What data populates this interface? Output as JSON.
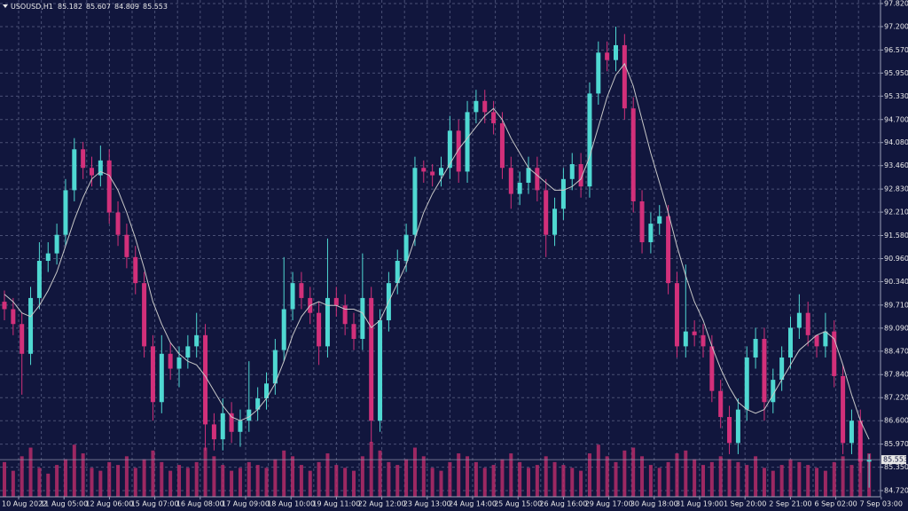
{
  "chart_data": {
    "type": "candlestick",
    "symbol": "USOUSD,H1",
    "last": {
      "open": 85.182,
      "high": 85.607,
      "low": 84.809,
      "close": 85.553
    },
    "x_labels": [
      "10 Aug 2022",
      "11 Aug 05:00",
      "12 Aug 06:00",
      "15 Aug 07:00",
      "16 Aug 08:00",
      "17 Aug 09:00",
      "18 Aug 10:00",
      "19 Aug 11:00",
      "22 Aug 12:00",
      "23 Aug 13:00",
      "24 Aug 14:00",
      "25 Aug 15:00",
      "26 Aug 16:00",
      "29 Aug 17:00",
      "30 Aug 18:00",
      "31 Aug 19:00",
      "1 Sep 20:00",
      "2 Sep 21:00",
      "6 Sep 02:00",
      "7 Sep 03:00"
    ],
    "open": [
      89.8,
      89.6,
      89.2,
      88.4,
      89.9,
      90.9,
      91.1,
      91.6,
      92.8,
      93.9,
      93.4,
      93.2,
      93.6,
      92.2,
      91.6,
      91.0,
      90.3,
      88.6,
      87.1,
      88.4,
      88.0,
      88.3,
      88.6,
      88.9,
      86.5,
      86.1,
      86.8,
      86.3,
      86.6,
      86.9,
      87.2,
      87.6,
      88.5,
      89.6,
      90.3,
      89.9,
      89.5,
      88.6,
      89.9,
      89.7,
      89.2,
      88.8,
      89.9,
      86.6,
      89.3,
      90.3,
      90.9,
      91.6,
      93.4,
      93.3,
      93.2,
      93.4,
      94.4,
      93.3,
      94.9,
      95.2,
      94.9,
      94.6,
      93.4,
      92.7,
      93.0,
      93.4,
      92.8,
      91.6,
      92.3,
      93.1,
      93.5,
      92.9,
      95.4,
      96.5,
      96.3,
      96.7,
      95.0,
      92.5,
      91.4,
      91.9,
      92.1,
      90.3,
      88.6,
      89.0,
      88.9,
      88.6,
      87.4,
      86.7,
      86.0,
      86.9,
      88.3,
      88.8,
      87.1,
      87.7,
      88.3,
      89.1,
      89.5,
      88.9,
      88.6,
      89.0,
      87.8,
      86.0,
      86.6,
      85.5
    ],
    "high": [
      90.1,
      89.9,
      89.5,
      90.2,
      91.4,
      91.4,
      91.9,
      93.1,
      94.2,
      94.1,
      93.7,
      94.0,
      93.9,
      92.5,
      91.9,
      91.3,
      90.6,
      88.9,
      88.9,
      88.7,
      88.6,
      88.9,
      89.5,
      89.2,
      86.8,
      87.2,
      87.1,
      86.9,
      88.2,
      87.5,
      87.9,
      88.8,
      91.0,
      90.6,
      90.6,
      90.2,
      89.8,
      91.5,
      90.2,
      90.0,
      89.5,
      91.1,
      90.2,
      89.6,
      90.6,
      91.2,
      91.9,
      93.7,
      93.6,
      93.5,
      93.7,
      94.8,
      94.7,
      95.2,
      95.5,
      95.5,
      95.2,
      94.9,
      93.7,
      93.3,
      93.7,
      93.7,
      93.1,
      92.6,
      93.4,
      93.8,
      93.8,
      95.7,
      96.8,
      96.8,
      97.2,
      97.0,
      95.3,
      92.8,
      92.2,
      92.4,
      92.4,
      90.6,
      90.8,
      89.3,
      89.2,
      88.9,
      87.7,
      87.0,
      87.2,
      88.6,
      89.1,
      89.1,
      88.0,
      88.6,
      89.4,
      90.0,
      89.8,
      88.9,
      89.5,
      89.3,
      88.1,
      86.9,
      86.9,
      85.7
    ],
    "low": [
      89.3,
      88.9,
      87.3,
      88.1,
      89.6,
      90.6,
      90.8,
      91.3,
      92.5,
      93.1,
      92.9,
      92.9,
      91.9,
      91.3,
      90.7,
      90.0,
      88.3,
      86.6,
      86.8,
      87.7,
      87.5,
      88.0,
      88.3,
      85.8,
      85.8,
      85.8,
      86.0,
      85.9,
      86.3,
      86.6,
      86.9,
      87.3,
      88.2,
      89.3,
      89.6,
      89.2,
      88.1,
      88.3,
      89.4,
      88.9,
      88.5,
      88.5,
      86.0,
      86.3,
      89.0,
      90.0,
      90.6,
      91.3,
      93.0,
      92.9,
      92.9,
      93.1,
      93.0,
      93.0,
      94.6,
      94.6,
      94.3,
      93.1,
      92.3,
      92.4,
      92.7,
      92.5,
      91.0,
      91.3,
      92.0,
      92.8,
      92.6,
      92.6,
      95.1,
      96.0,
      96.0,
      94.7,
      92.2,
      91.1,
      91.1,
      91.6,
      90.0,
      88.3,
      88.3,
      88.6,
      88.3,
      87.1,
      86.4,
      85.7,
      85.7,
      86.6,
      88.0,
      86.6,
      86.8,
      87.4,
      88.0,
      88.8,
      88.6,
      88.3,
      88.3,
      87.5,
      85.7,
      85.7,
      85.2,
      84.8
    ],
    "close": [
      89.6,
      89.2,
      88.4,
      89.9,
      90.9,
      91.1,
      91.6,
      92.8,
      93.9,
      93.4,
      93.2,
      93.6,
      92.2,
      91.6,
      91.0,
      90.3,
      88.6,
      87.1,
      88.4,
      88.0,
      88.3,
      88.6,
      88.9,
      86.5,
      86.1,
      86.8,
      86.3,
      86.6,
      86.9,
      87.2,
      87.6,
      88.5,
      89.6,
      90.3,
      89.9,
      89.5,
      88.6,
      89.9,
      89.7,
      89.2,
      88.8,
      89.9,
      86.6,
      89.3,
      90.3,
      90.9,
      91.6,
      93.4,
      93.3,
      93.2,
      93.4,
      94.4,
      93.3,
      94.9,
      95.2,
      94.9,
      94.6,
      93.4,
      92.7,
      93.0,
      93.4,
      92.8,
      91.6,
      92.3,
      93.1,
      93.5,
      92.9,
      95.4,
      96.5,
      96.3,
      96.7,
      95.0,
      92.5,
      91.4,
      91.9,
      92.1,
      90.3,
      88.6,
      89.0,
      88.9,
      88.6,
      87.4,
      86.7,
      86.0,
      86.9,
      88.3,
      88.8,
      87.1,
      87.7,
      88.3,
      89.1,
      89.5,
      88.9,
      88.6,
      89.0,
      87.8,
      86.0,
      86.6,
      85.5,
      85.55
    ],
    "volume": [
      60,
      45,
      70,
      85,
      50,
      40,
      55,
      65,
      90,
      75,
      50,
      45,
      60,
      55,
      70,
      50,
      65,
      80,
      60,
      45,
      55,
      50,
      60,
      85,
      70,
      55,
      45,
      50,
      60,
      55,
      50,
      65,
      80,
      70,
      55,
      45,
      60,
      75,
      55,
      50,
      45,
      70,
      95,
      80,
      60,
      55,
      65,
      85,
      70,
      50,
      45,
      60,
      75,
      70,
      60,
      50,
      55,
      65,
      75,
      60,
      50,
      55,
      70,
      60,
      55,
      50,
      45,
      75,
      90,
      70,
      60,
      80,
      85,
      70,
      55,
      50,
      60,
      75,
      80,
      65,
      55,
      60,
      70,
      65,
      60,
      55,
      70,
      50,
      45,
      55,
      65,
      60,
      55,
      50,
      45,
      60,
      70,
      55,
      65,
      75
    ],
    "ma": [
      90.0,
      89.8,
      89.5,
      89.4,
      89.7,
      90.1,
      90.6,
      91.3,
      92.0,
      92.6,
      93.1,
      93.3,
      93.2,
      92.8,
      92.2,
      91.5,
      90.7,
      89.8,
      89.2,
      88.7,
      88.4,
      88.2,
      88.1,
      87.8,
      87.4,
      87.0,
      86.7,
      86.6,
      86.7,
      86.9,
      87.2,
      87.6,
      88.2,
      88.9,
      89.4,
      89.7,
      89.8,
      89.7,
      89.7,
      89.6,
      89.6,
      89.5,
      89.1,
      89.3,
      89.8,
      90.3,
      90.8,
      91.5,
      92.2,
      92.7,
      93.1,
      93.5,
      93.9,
      94.2,
      94.5,
      94.8,
      95.0,
      94.7,
      94.2,
      93.8,
      93.4,
      93.2,
      93.0,
      92.8,
      92.8,
      92.9,
      93.1,
      93.7,
      94.5,
      95.3,
      95.9,
      96.2,
      95.6,
      94.7,
      93.8,
      93.0,
      92.2,
      91.3,
      90.5,
      89.8,
      89.3,
      88.6,
      88.0,
      87.5,
      87.1,
      86.9,
      86.8,
      86.9,
      87.3,
      87.7,
      88.1,
      88.5,
      88.7,
      88.9,
      89.0,
      88.8,
      88.1,
      87.3,
      86.6,
      86.1
    ],
    "ylim": [
      84.72,
      97.82
    ],
    "yticks": [
      {
        "value": 97.82,
        "label": "97.820"
      },
      {
        "value": 97.2,
        "label": "97.200"
      },
      {
        "value": 96.57,
        "label": "96.570"
      },
      {
        "value": 95.95,
        "label": "95.950"
      },
      {
        "value": 95.33,
        "label": "95.330"
      },
      {
        "value": 94.7,
        "label": "94.700"
      },
      {
        "value": 94.08,
        "label": "94.080"
      },
      {
        "value": 93.46,
        "label": "93.460"
      },
      {
        "value": 92.83,
        "label": "92.830"
      },
      {
        "value": 92.21,
        "label": "92.210"
      },
      {
        "value": 91.58,
        "label": "91.580"
      },
      {
        "value": 90.96,
        "label": "90.960"
      },
      {
        "value": 90.34,
        "label": "90.340"
      },
      {
        "value": 89.71,
        "label": "89.710"
      },
      {
        "value": 89.09,
        "label": "89.090"
      },
      {
        "value": 88.47,
        "label": "88.470"
      },
      {
        "value": 87.84,
        "label": "87.840"
      },
      {
        "value": 87.22,
        "label": "87.220"
      },
      {
        "value": 86.6,
        "label": "86.600"
      },
      {
        "value": 85.97,
        "label": "85.970"
      },
      {
        "value": 85.35,
        "label": "85.350"
      },
      {
        "value": 84.72,
        "label": "84.720"
      }
    ],
    "grid": true,
    "colors": {
      "up": "#4fd8d2",
      "down": "#d2307a",
      "ma": "#c8c8c8",
      "volume": "#b52c68",
      "grid": "#4a5075",
      "background": "#11163d",
      "text": "#e8e8e8"
    }
  }
}
